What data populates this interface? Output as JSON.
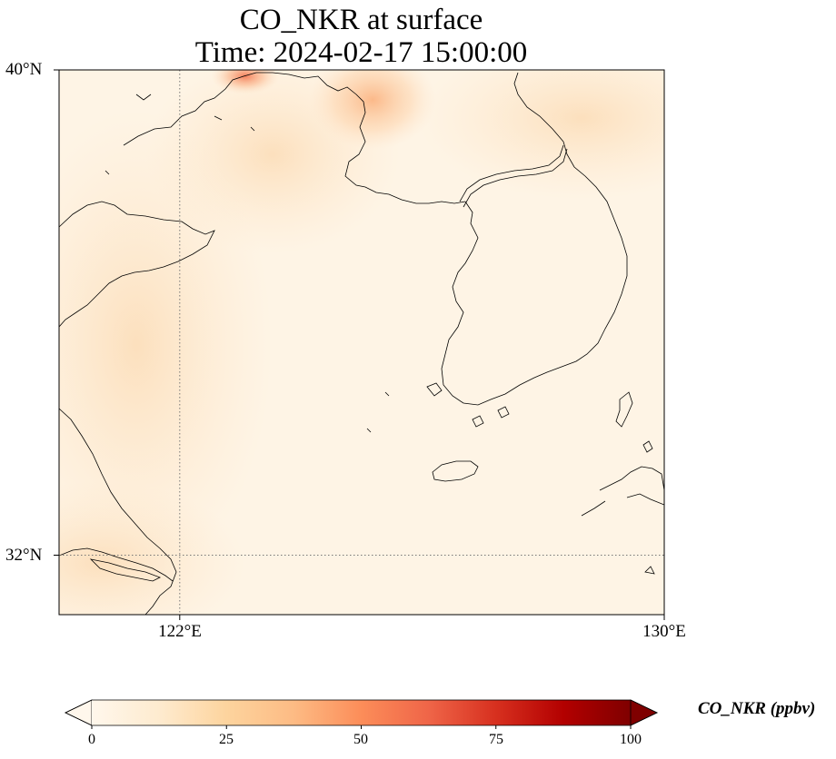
{
  "title": {
    "line1": "CO_NKR at surface",
    "line2": "Time: 2024-02-17 15:00:00"
  },
  "map": {
    "lat_labels": [
      "40°N",
      "32°N"
    ],
    "lon_labels": [
      "122°E",
      "130°E"
    ],
    "extent": {
      "lon_min": 120.4,
      "lon_max": 130,
      "lat_min": 31.2,
      "lat_max": 40
    },
    "gridlines": {
      "lons": [
        122
      ],
      "lats": [
        32
      ],
      "style": "dotted"
    },
    "variable": "CO_NKR",
    "level": "surface"
  },
  "colorbar": {
    "label": "CO_NKR (ppbv)",
    "ticks": [
      "0",
      "25",
      "50",
      "75",
      "100"
    ],
    "tick_values": [
      0,
      25,
      50,
      75,
      100
    ],
    "range": [
      0,
      100
    ],
    "colormap": "OrRd",
    "extend": "both"
  },
  "colors": {
    "background_field": "#fef4e5",
    "land_tint": "#fde8cc",
    "hotspot": "#f37a55",
    "coastline": "#000000"
  }
}
